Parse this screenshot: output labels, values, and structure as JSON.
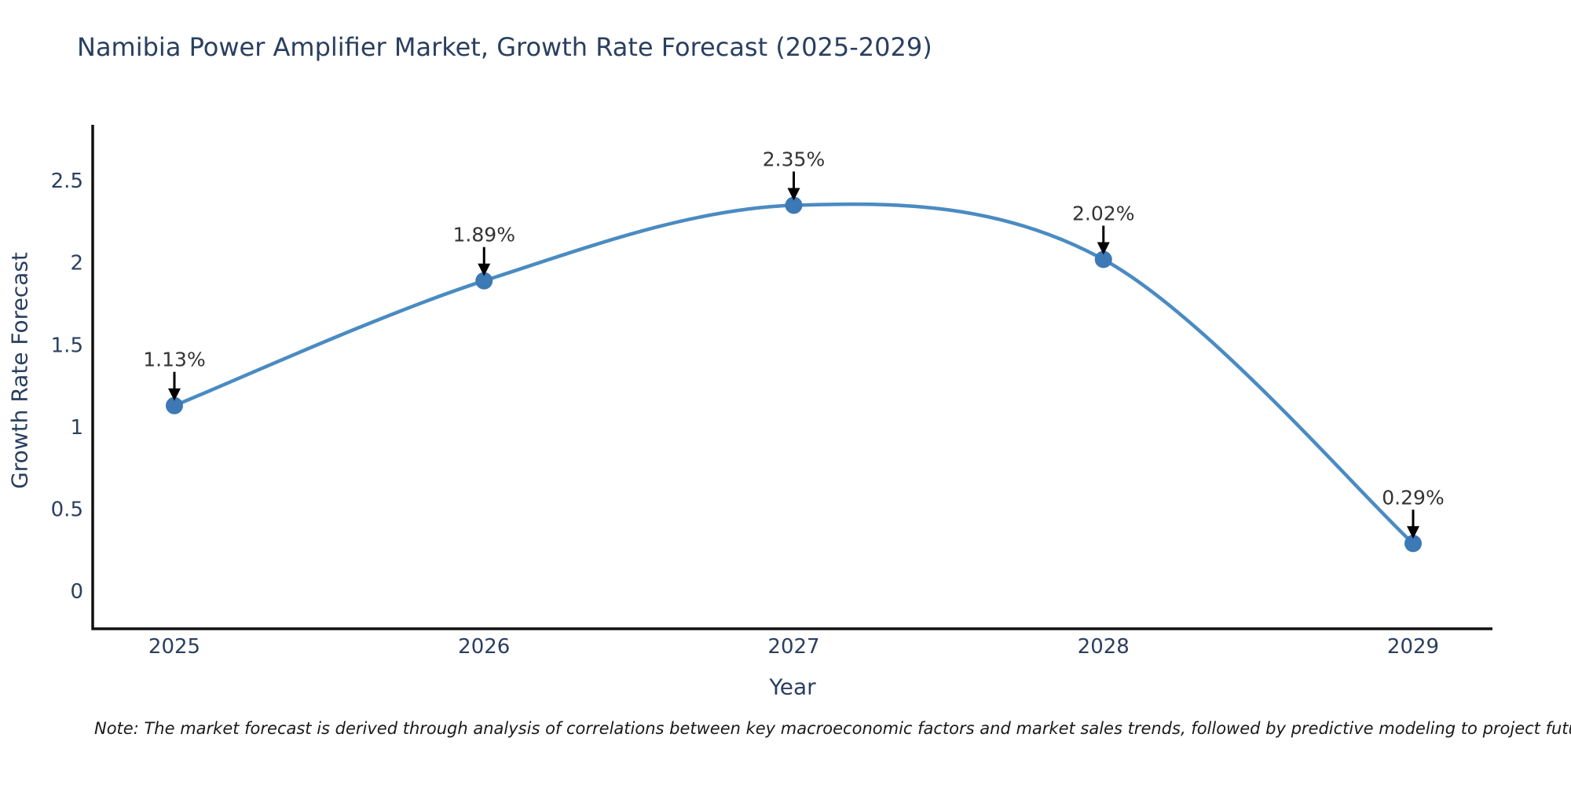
{
  "chart_data": {
    "type": "line",
    "title": "Namibia Power Amplifier Market, Growth Rate Forecast (2025-2029)",
    "x": [
      "2025",
      "2026",
      "2027",
      "2028",
      "2029"
    ],
    "series": [
      {
        "name": "Growth Rate Forecast",
        "values": [
          1.13,
          1.89,
          2.35,
          2.02,
          0.29
        ]
      }
    ],
    "point_labels": [
      "1.13%",
      "1.89%",
      "2.35%",
      "2.02%",
      "0.29%"
    ],
    "xlabel": "Year",
    "ylabel": "Growth Rate Forecast",
    "ylim": [
      0,
      2.84
    ],
    "ytick_values": [
      0,
      0.5,
      1,
      1.5,
      2,
      2.5
    ],
    "ytick_labels": [
      "0",
      "0.5",
      "1",
      "1.5",
      "2",
      "2.5"
    ],
    "grid": false,
    "legend": "none",
    "marker": "circle",
    "line_shape": "spline",
    "annotation_style": "percentage labels with downward black arrows above each data point"
  },
  "note": "Note: The market forecast is derived through analysis of correlations between key macroeconomic factors and market sales trends, followed by predictive modeling to project future sales",
  "colors": {
    "line": "#4a8bc2",
    "marker": "#3c79b5",
    "axis_line": "#111111",
    "chart_text": "#2a3f5f",
    "annotation_text": "#333333",
    "arrow": "#000000",
    "note_text": "#1a1a1a",
    "background": "#ffffff"
  }
}
